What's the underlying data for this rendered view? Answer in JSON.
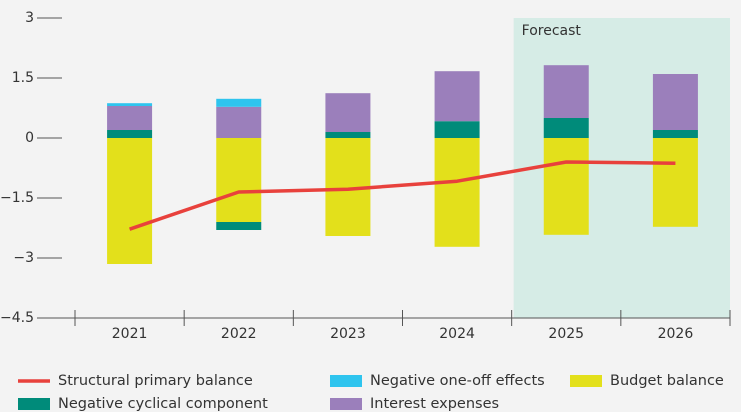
{
  "chart_data": {
    "type": "bar",
    "categories": [
      "2021",
      "2022",
      "2023",
      "2024",
      "2025",
      "2026"
    ],
    "series": [
      {
        "name": "Structural primary balance",
        "kind": "line",
        "color": "#e8413c",
        "values": [
          -2.28,
          -1.35,
          -1.28,
          -1.08,
          -0.6,
          -0.63
        ]
      },
      {
        "name": "Negative one-off effects",
        "color": "#2ec4ee",
        "values": [
          0.07,
          0.2,
          0,
          0,
          0,
          0
        ]
      },
      {
        "name": "Budget balance",
        "color": "#e3e01b",
        "values": [
          -3.15,
          -2.1,
          -2.45,
          -2.72,
          -2.42,
          -2.22
        ]
      },
      {
        "name": "Negative cyclical component",
        "color": "#008b7a",
        "values": [
          0.2,
          -0.2,
          0.15,
          0.42,
          0.5,
          0.2
        ]
      },
      {
        "name": "Interest expenses",
        "color": "#9b7fbb",
        "values": [
          0.6,
          0.78,
          0.97,
          1.25,
          1.32,
          1.4
        ]
      }
    ],
    "forecast": {
      "label": "Forecast",
      "from": "2025",
      "color": "#d6ece6",
      "text_color": "#1a9a86"
    },
    "ylim": [
      -4.5,
      3
    ],
    "yticks": [
      {
        "value": -4.5,
        "label": "−4.5"
      },
      {
        "value": -3,
        "label": "−3"
      },
      {
        "value": -1.5,
        "label": "−1.5"
      },
      0,
      1.5,
      3
    ]
  }
}
